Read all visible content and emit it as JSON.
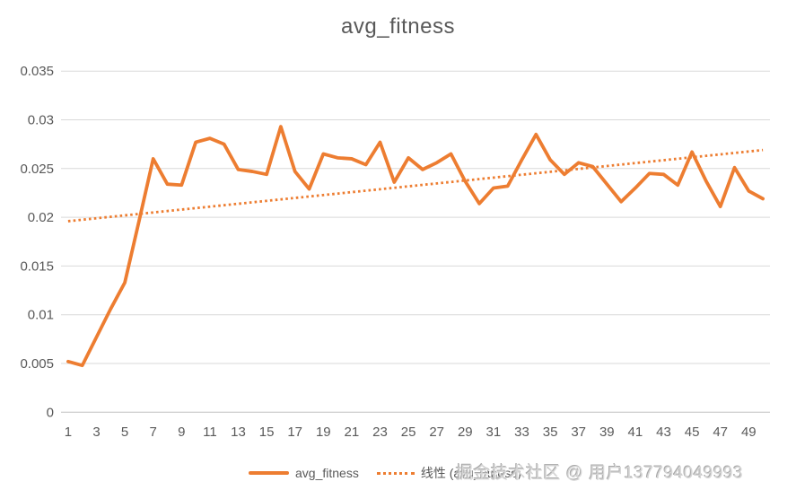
{
  "title": "avg_fitness",
  "watermark": "掘金技术社区 @ 用户137794049993",
  "legend": {
    "items": [
      {
        "label": "avg_fitness",
        "marker": "solid-line"
      },
      {
        "label": "线性 (avg_fitness)",
        "marker": "dotted-line"
      }
    ]
  },
  "colors": {
    "series": "#ED7D31",
    "gridline": "#D9D9D9",
    "axis_line": "#BFBFBF",
    "tick_text": "#595959",
    "title_text": "#595959",
    "legend_text": "#595959",
    "watermark_text": "#D6D6D6"
  },
  "chart_data": {
    "type": "line",
    "title": "avg_fitness",
    "grid": "horizontal",
    "legend_position": "bottom",
    "ylim": [
      0,
      0.035
    ],
    "y_ticks": [
      0,
      0.005,
      0.01,
      0.015,
      0.02,
      0.025,
      0.03,
      0.035
    ],
    "y_tick_labels": [
      "0",
      "0.005",
      "0.01",
      "0.015",
      "0.02",
      "0.025",
      "0.03",
      "0.035"
    ],
    "x": [
      1,
      2,
      3,
      4,
      5,
      6,
      7,
      8,
      9,
      10,
      11,
      12,
      13,
      14,
      15,
      16,
      17,
      18,
      19,
      20,
      21,
      22,
      23,
      24,
      25,
      26,
      27,
      28,
      29,
      30,
      31,
      32,
      33,
      34,
      35,
      36,
      37,
      38,
      39,
      40,
      41,
      42,
      43,
      44,
      45,
      46,
      47,
      48,
      49,
      50
    ],
    "x_tick_labels": [
      1,
      3,
      5,
      7,
      9,
      11,
      13,
      15,
      17,
      19,
      21,
      23,
      25,
      27,
      29,
      31,
      33,
      35,
      37,
      39,
      41,
      43,
      45,
      47,
      49
    ],
    "series": [
      {
        "name": "avg_fitness",
        "style": "solid",
        "values": [
          0.0052,
          0.0048,
          0.0077,
          0.0106,
          0.0133,
          0.0196,
          0.026,
          0.0234,
          0.0233,
          0.0277,
          0.0281,
          0.0275,
          0.0249,
          0.0247,
          0.0244,
          0.0293,
          0.0247,
          0.0229,
          0.0265,
          0.0261,
          0.026,
          0.0254,
          0.0277,
          0.0236,
          0.0261,
          0.0249,
          0.0256,
          0.0265,
          0.0237,
          0.0214,
          0.023,
          0.0232,
          0.0259,
          0.0285,
          0.0259,
          0.0244,
          0.0256,
          0.0252,
          0.0234,
          0.0216,
          0.023,
          0.0245,
          0.0244,
          0.0233,
          0.0267,
          0.0237,
          0.0211,
          0.0251,
          0.0227,
          0.0219
        ]
      },
      {
        "name": "线性 (avg_fitness)",
        "style": "dotted-trend",
        "trend_start": 0.0196,
        "trend_end": 0.0269
      }
    ]
  }
}
